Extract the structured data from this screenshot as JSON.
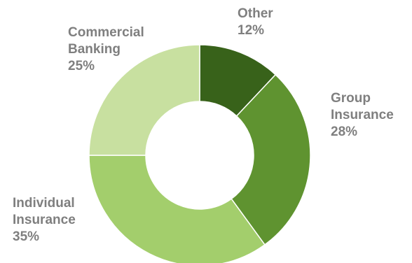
{
  "chart_data": {
    "type": "pie",
    "donut": true,
    "slices": [
      {
        "name_lines": [
          "Other"
        ],
        "percent_label": "12%",
        "value": 12,
        "color": "#38621a"
      },
      {
        "name_lines": [
          "Group",
          "Insurance"
        ],
        "percent_label": "28%",
        "value": 28,
        "color": "#5f9330"
      },
      {
        "name_lines": [
          "Individual",
          "Insurance"
        ],
        "percent_label": "35%",
        "value": 35,
        "color": "#a3ce6c"
      },
      {
        "name_lines": [
          "Commercial",
          "Banking"
        ],
        "percent_label": "25%",
        "value": 25,
        "color": "#c8e0a0"
      }
    ],
    "label_color": "#7f7f7f",
    "legend": "none"
  }
}
